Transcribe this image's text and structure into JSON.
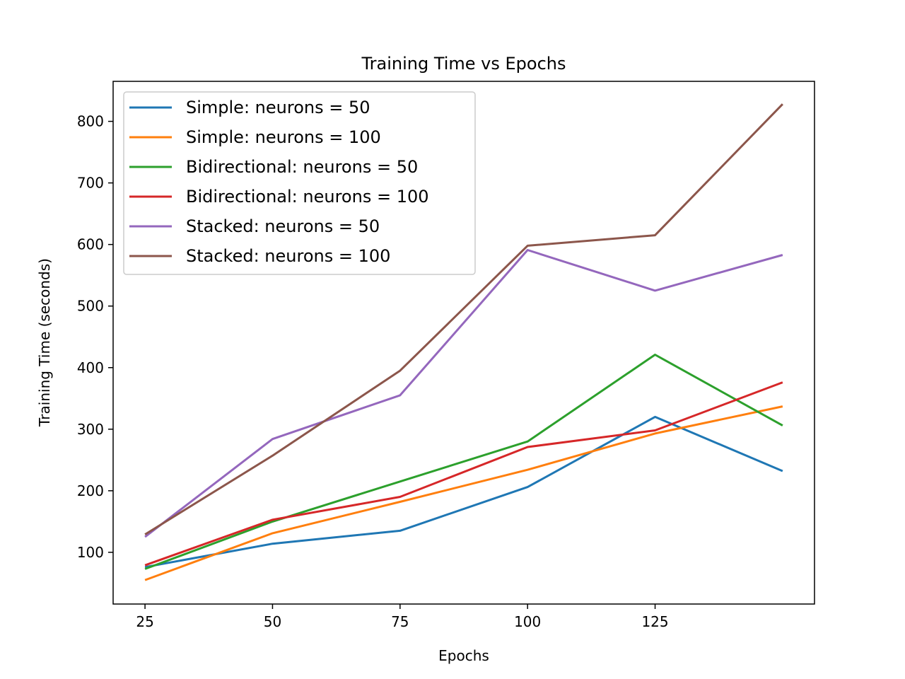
{
  "chart_data": {
    "type": "line",
    "title": "Training Time vs Epochs",
    "xlabel": "Epochs",
    "ylabel": "Training Time (seconds)",
    "x": [
      25,
      50,
      75,
      100,
      125,
      150
    ],
    "xticks": [
      "25",
      "50",
      "75",
      "100",
      "125"
    ],
    "yticks": [
      "100",
      "200",
      "300",
      "400",
      "500",
      "600",
      "700",
      "800"
    ],
    "xlim": [
      18.75,
      156.25
    ],
    "ylim": [
      16,
      865
    ],
    "grid": false,
    "legend_position": "upper-left",
    "series": [
      {
        "name": "Simple: neurons = 50",
        "color": "#1f77b4",
        "values": [
          76,
          114,
          135,
          206,
          320,
          232
        ]
      },
      {
        "name": "Simple: neurons = 100",
        "color": "#ff7f0e",
        "values": [
          55,
          131,
          182,
          234,
          293,
          337
        ]
      },
      {
        "name": "Bidirectional: neurons = 50",
        "color": "#2ca02c",
        "values": [
          73,
          150,
          215,
          280,
          421,
          306
        ]
      },
      {
        "name": "Bidirectional: neurons = 100",
        "color": "#d62728",
        "values": [
          79,
          153,
          190,
          271,
          298,
          376
        ]
      },
      {
        "name": "Stacked: neurons = 50",
        "color": "#9467bd",
        "values": [
          125,
          284,
          355,
          591,
          525,
          583
        ]
      },
      {
        "name": "Stacked: neurons = 100",
        "color": "#8c564b",
        "values": [
          129,
          257,
          395,
          598,
          615,
          828
        ]
      }
    ]
  }
}
